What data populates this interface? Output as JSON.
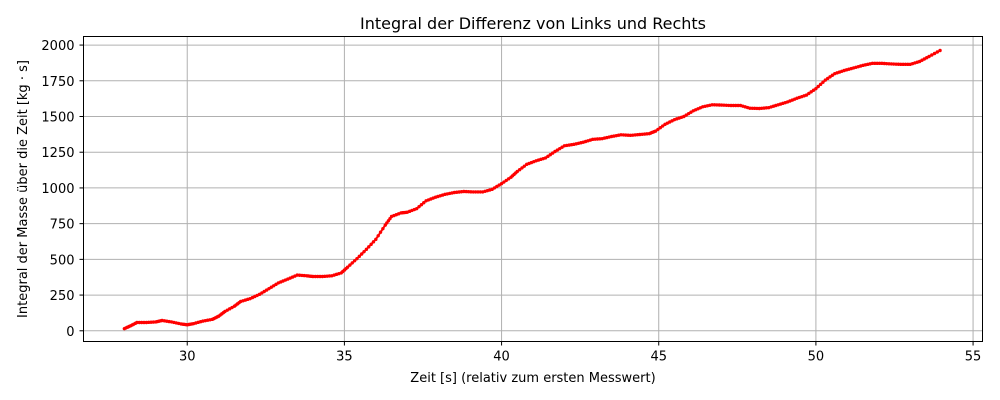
{
  "chart_data": {
    "type": "line",
    "title": "Integral der Differenz von Links und Rechts",
    "xlabel": "Zeit [s] (relativ zum ersten Messwert)",
    "ylabel": "Integral der Masse über die Zeit [kg · s]",
    "xlim": [
      26.7,
      55.3
    ],
    "ylim": [
      -75,
      2060
    ],
    "xticks": [
      30,
      35,
      40,
      45,
      50,
      55
    ],
    "yticks": [
      0,
      250,
      500,
      750,
      1000,
      1250,
      1500,
      1750,
      2000
    ],
    "grid": true,
    "series_color": "#ff0000",
    "marker": "dot",
    "series": [
      {
        "points": [
          [
            28.0,
            15
          ],
          [
            28.2,
            35
          ],
          [
            28.4,
            58
          ],
          [
            28.7,
            58
          ],
          [
            29.0,
            62
          ],
          [
            29.2,
            72
          ],
          [
            29.5,
            62
          ],
          [
            29.8,
            48
          ],
          [
            30.0,
            42
          ],
          [
            30.2,
            50
          ],
          [
            30.5,
            68
          ],
          [
            30.8,
            80
          ],
          [
            31.0,
            102
          ],
          [
            31.2,
            135
          ],
          [
            31.5,
            172
          ],
          [
            31.7,
            205
          ],
          [
            32.0,
            225
          ],
          [
            32.3,
            255
          ],
          [
            32.6,
            295
          ],
          [
            32.9,
            335
          ],
          [
            33.2,
            362
          ],
          [
            33.5,
            390
          ],
          [
            33.8,
            385
          ],
          [
            34.0,
            380
          ],
          [
            34.3,
            380
          ],
          [
            34.6,
            385
          ],
          [
            34.9,
            405
          ],
          [
            35.1,
            445
          ],
          [
            35.4,
            505
          ],
          [
            35.7,
            570
          ],
          [
            36.0,
            640
          ],
          [
            36.3,
            740
          ],
          [
            36.5,
            800
          ],
          [
            36.8,
            825
          ],
          [
            37.0,
            830
          ],
          [
            37.3,
            855
          ],
          [
            37.6,
            910
          ],
          [
            37.9,
            935
          ],
          [
            38.2,
            955
          ],
          [
            38.5,
            968
          ],
          [
            38.8,
            975
          ],
          [
            39.1,
            972
          ],
          [
            39.4,
            972
          ],
          [
            39.7,
            990
          ],
          [
            40.0,
            1030
          ],
          [
            40.3,
            1075
          ],
          [
            40.5,
            1115
          ],
          [
            40.8,
            1165
          ],
          [
            41.1,
            1190
          ],
          [
            41.4,
            1210
          ],
          [
            41.7,
            1255
          ],
          [
            42.0,
            1295
          ],
          [
            42.3,
            1305
          ],
          [
            42.6,
            1320
          ],
          [
            42.9,
            1340
          ],
          [
            43.2,
            1345
          ],
          [
            43.5,
            1360
          ],
          [
            43.8,
            1372
          ],
          [
            44.1,
            1368
          ],
          [
            44.4,
            1374
          ],
          [
            44.7,
            1380
          ],
          [
            44.9,
            1398
          ],
          [
            45.2,
            1445
          ],
          [
            45.5,
            1478
          ],
          [
            45.8,
            1500
          ],
          [
            46.1,
            1540
          ],
          [
            46.4,
            1568
          ],
          [
            46.7,
            1582
          ],
          [
            47.0,
            1580
          ],
          [
            47.3,
            1577
          ],
          [
            47.6,
            1577
          ],
          [
            47.9,
            1558
          ],
          [
            48.2,
            1556
          ],
          [
            48.5,
            1562
          ],
          [
            48.8,
            1582
          ],
          [
            49.1,
            1602
          ],
          [
            49.4,
            1628
          ],
          [
            49.7,
            1650
          ],
          [
            50.0,
            1695
          ],
          [
            50.3,
            1755
          ],
          [
            50.6,
            1800
          ],
          [
            50.9,
            1822
          ],
          [
            51.2,
            1840
          ],
          [
            51.5,
            1858
          ],
          [
            51.8,
            1872
          ],
          [
            52.1,
            1872
          ],
          [
            52.4,
            1868
          ],
          [
            52.7,
            1865
          ],
          [
            53.0,
            1865
          ],
          [
            53.3,
            1885
          ],
          [
            53.6,
            1920
          ],
          [
            53.95,
            1962
          ]
        ]
      }
    ]
  }
}
